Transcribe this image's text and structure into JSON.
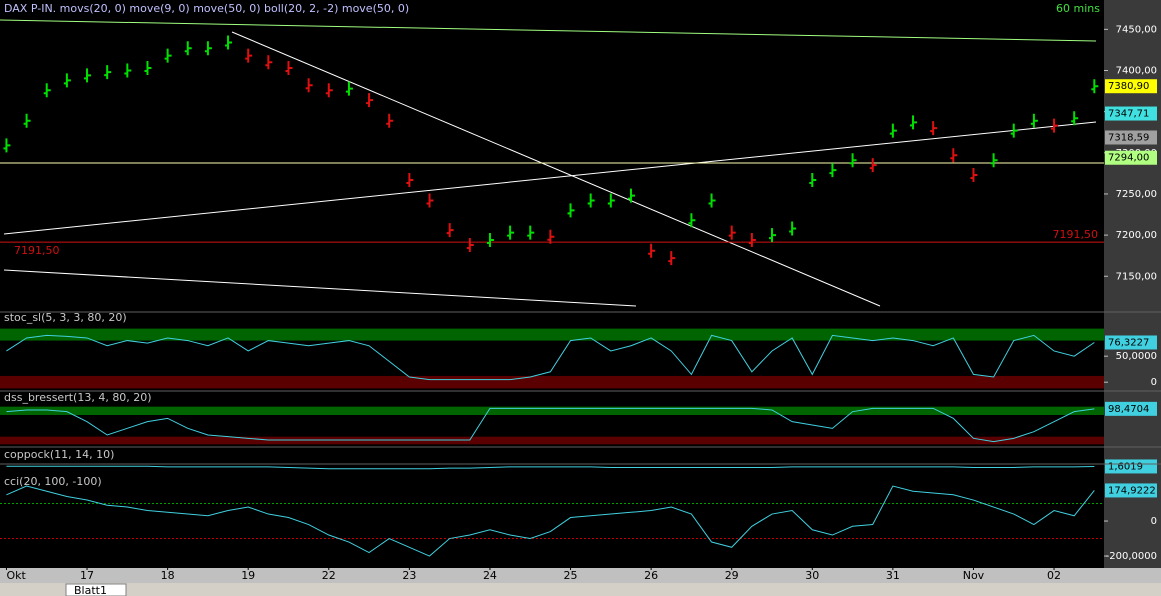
{
  "timeframe": "60 mins",
  "sheet_tab": "Blatt1",
  "chart_data": [
    {
      "type": "tick",
      "title": "DAX P-IN. movs(20, 0) move(9, 0) move(50, 0) boll(20, 2, -2) move(50, 0)",
      "x": [
        0,
        0.25,
        0.5,
        0.75,
        1,
        1.25,
        1.5,
        1.75,
        2,
        2.25,
        2.5,
        2.75,
        3,
        3.25,
        3.5,
        3.75,
        4,
        4.25,
        4.5,
        4.75,
        5,
        5.25,
        5.5,
        5.75,
        6,
        6.25,
        6.5,
        6.75,
        7,
        7.25,
        7.5,
        7.75,
        8,
        8.25,
        8.5,
        8.75,
        9,
        9.25,
        9.5,
        9.75,
        10,
        10.25,
        10.5,
        10.75,
        11,
        11.25,
        11.5,
        11.75,
        12,
        12.25,
        12.5,
        12.75,
        13,
        13.25,
        13.5
      ],
      "xlim": [
        -0.08,
        13.62
      ],
      "values": [
        7309,
        7339,
        7376,
        7388,
        7394,
        7398,
        7400,
        7403,
        7418,
        7427,
        7427,
        7434,
        7418,
        7410,
        7403,
        7382,
        7376,
        7378,
        7364,
        7339,
        7267,
        7242,
        7206,
        7188,
        7194,
        7203,
        7203,
        7198,
        7230,
        7242,
        7242,
        7248,
        7181,
        7172,
        7218,
        7242,
        7203,
        7194,
        7200,
        7208,
        7267,
        7279,
        7291,
        7285,
        7327,
        7337,
        7330,
        7297,
        7273,
        7291,
        7327,
        7339,
        7333,
        7342,
        7380.9
      ],
      "value_labels": [
        null,
        null,
        null,
        null,
        null,
        null,
        null,
        null,
        null,
        null,
        null,
        null,
        null,
        null,
        null,
        null,
        null,
        null,
        null,
        null,
        null,
        null,
        null,
        null,
        null,
        null,
        null,
        null,
        null,
        null,
        null,
        null,
        null,
        null,
        null,
        null,
        null,
        null,
        null,
        null,
        null,
        null,
        null,
        null,
        null,
        null,
        null,
        null,
        null,
        null,
        null,
        null,
        null,
        null,
        "7380,90"
      ],
      "up_color": "#00e000",
      "down_color": "#e01010",
      "label_color": "#ffff00",
      "ylim": [
        7109,
        7465
      ],
      "yticks": [
        {
          "value": 7450,
          "label": "7450,00"
        },
        {
          "value": 7400,
          "label": "7400,00"
        },
        {
          "value": 7350,
          "label": "7350,00"
        },
        {
          "value": 7300,
          "label": "7300,00"
        },
        {
          "value": 7250,
          "label": "7250,00"
        },
        {
          "value": 7200,
          "label": "7200,00"
        },
        {
          "value": 7150,
          "label": "7150,00"
        }
      ],
      "annotations": [
        {
          "value": 7347.71,
          "label": "7347,71",
          "color": "#40e0e0"
        },
        {
          "value": 7318.59,
          "label": "7318,59",
          "color": "#a0a0a0"
        },
        {
          "value": 7294,
          "label": "7294,00",
          "color": "#b0ff80"
        }
      ],
      "hlines": [
        {
          "value": 7191.5,
          "label": "7191,50",
          "color": "#d01010"
        }
      ]
    },
    {
      "type": "line",
      "title": "stoc_sl(5, 3, 3, 80, 20)",
      "color": "#40d0e0",
      "values": [
        60,
        85,
        90,
        88,
        85,
        70,
        80,
        75,
        85,
        80,
        70,
        85,
        60,
        80,
        75,
        70,
        75,
        80,
        70,
        40,
        10,
        5,
        5,
        5,
        5,
        5,
        10,
        20,
        80,
        85,
        60,
        70,
        85,
        60,
        15,
        90,
        80,
        20,
        60,
        85,
        15,
        90,
        85,
        80,
        85,
        80,
        70,
        85,
        15,
        10,
        80,
        90,
        60,
        50,
        76.3227
      ],
      "value_labels": [
        null,
        null,
        null,
        null,
        null,
        null,
        null,
        null,
        null,
        null,
        null,
        null,
        null,
        null,
        null,
        null,
        null,
        null,
        null,
        null,
        null,
        null,
        null,
        null,
        null,
        null,
        null,
        null,
        null,
        null,
        null,
        null,
        null,
        null,
        null,
        null,
        null,
        null,
        null,
        null,
        null,
        null,
        null,
        null,
        null,
        null,
        null,
        null,
        null,
        null,
        null,
        null,
        null,
        null,
        "76,3227"
      ],
      "ylim": [
        -15,
        108
      ],
      "yticks": [
        0,
        {
          "value": 50,
          "label": "50,0000"
        }
      ],
      "bands": [
        {
          "from": 80,
          "to": 103,
          "color": "#006400"
        },
        {
          "from": -12,
          "to": 12,
          "color": "#5a0000"
        }
      ]
    },
    {
      "type": "line",
      "title": "dss_bressert(13, 4, 80, 20)",
      "color": "#40d0e0",
      "values": [
        90,
        95,
        95,
        90,
        60,
        20,
        40,
        60,
        70,
        40,
        20,
        15,
        10,
        5,
        5,
        5,
        5,
        5,
        5,
        5,
        5,
        5,
        5,
        5,
        100,
        100,
        100,
        100,
        100,
        100,
        100,
        100,
        100,
        100,
        100,
        100,
        100,
        100,
        95,
        60,
        50,
        40,
        90,
        100,
        100,
        100,
        100,
        70,
        10,
        0,
        10,
        30,
        60,
        90,
        98.4704
      ],
      "value_labels": [
        null,
        null,
        null,
        null,
        null,
        null,
        null,
        null,
        null,
        null,
        null,
        null,
        null,
        null,
        null,
        null,
        null,
        null,
        null,
        null,
        null,
        null,
        null,
        null,
        null,
        null,
        null,
        null,
        null,
        null,
        null,
        null,
        null,
        null,
        null,
        null,
        null,
        null,
        null,
        null,
        null,
        null,
        null,
        null,
        null,
        null,
        null,
        null,
        null,
        null,
        null,
        null,
        null,
        null,
        "98,4704"
      ],
      "ylim": [
        -10,
        110
      ],
      "bands": [
        {
          "from": 80,
          "to": 105,
          "color": "#006400"
        },
        {
          "from": -8,
          "to": 15,
          "color": "#5a0000"
        }
      ]
    },
    {
      "type": "line",
      "title": "coppock(11, 14, 10)",
      "color": "#40d0e0",
      "values": [
        2,
        2,
        2,
        2,
        2,
        2,
        2,
        2,
        1,
        1,
        1,
        1,
        1,
        1,
        0,
        -1,
        -2,
        -2,
        -2,
        -2,
        -2,
        -2,
        -1,
        -1,
        0,
        1,
        1,
        1,
        1,
        1,
        0,
        0,
        0,
        0,
        0,
        0,
        0,
        0,
        0,
        1,
        1,
        1,
        1,
        1,
        1,
        1,
        1,
        1,
        0,
        0,
        0,
        1,
        1,
        1,
        1.6019
      ],
      "value_labels": [
        null,
        null,
        null,
        null,
        null,
        null,
        null,
        null,
        null,
        null,
        null,
        null,
        null,
        null,
        null,
        null,
        null,
        null,
        null,
        null,
        null,
        null,
        null,
        null,
        null,
        null,
        null,
        null,
        null,
        null,
        null,
        null,
        null,
        null,
        null,
        null,
        null,
        null,
        null,
        null,
        null,
        null,
        null,
        null,
        null,
        null,
        null,
        null,
        null,
        null,
        null,
        null,
        null,
        null,
        "1,6019"
      ],
      "ylim": [
        -10,
        10
      ]
    },
    {
      "type": "line",
      "title": "cci(20, 100, -100)",
      "color": "#40d0e0",
      "values": [
        150,
        200,
        170,
        140,
        120,
        90,
        80,
        60,
        50,
        40,
        30,
        60,
        80,
        40,
        20,
        -20,
        -80,
        -120,
        -180,
        -100,
        -150,
        -200,
        -100,
        -80,
        -50,
        -80,
        -100,
        -60,
        20,
        30,
        40,
        50,
        60,
        80,
        40,
        -120,
        -150,
        -30,
        40,
        60,
        -50,
        -80,
        -30,
        -20,
        200,
        170,
        160,
        150,
        120,
        80,
        40,
        -20,
        60,
        30,
        174.9222
      ],
      "value_labels": [
        null,
        null,
        null,
        null,
        null,
        null,
        null,
        null,
        null,
        null,
        null,
        null,
        null,
        null,
        null,
        null,
        null,
        null,
        null,
        null,
        null,
        null,
        null,
        null,
        null,
        null,
        null,
        null,
        null,
        null,
        null,
        null,
        null,
        null,
        null,
        null,
        null,
        null,
        null,
        null,
        null,
        null,
        null,
        null,
        null,
        null,
        null,
        null,
        null,
        null,
        null,
        null,
        null,
        null,
        "174,9222"
      ],
      "ylim": [
        -257,
        246
      ],
      "yticks": [
        0,
        {
          "value": -200,
          "label": "-200,0000"
        }
      ],
      "levels": [
        {
          "value": 100,
          "color": "#00a000"
        },
        {
          "value": -100,
          "color": "#c00000"
        }
      ],
      "xticks": [
        {
          "value": 0,
          "label": "Okt"
        },
        {
          "value": 1,
          "label": "17"
        },
        {
          "value": 2,
          "label": "18"
        },
        {
          "value": 3,
          "label": "19"
        },
        {
          "value": 4,
          "label": "22"
        },
        {
          "value": 5,
          "label": "23"
        },
        {
          "value": 6,
          "label": "24"
        },
        {
          "value": 7,
          "label": "25"
        },
        {
          "value": 8,
          "label": "26"
        },
        {
          "value": 9,
          "label": "29"
        },
        {
          "value": 10,
          "label": "30"
        },
        {
          "value": 11,
          "label": "31"
        },
        {
          "value": 12,
          "label": "Nov"
        },
        {
          "value": 13,
          "label": "02"
        }
      ]
    }
  ]
}
